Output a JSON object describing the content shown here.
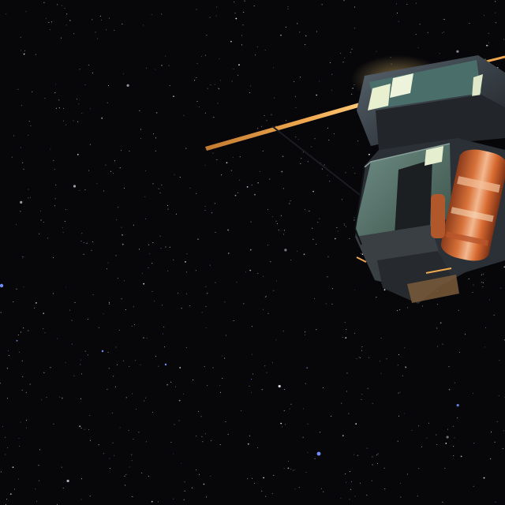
{
  "scene": {
    "description_label": "space-scene",
    "colors": {
      "space": "#07070a",
      "star": "#e8eef5",
      "star_blue": "#6f8fff",
      "hull_dark": "#2a2d33",
      "hull_mid": "#3d444c",
      "hull_teal": "#4e6a63",
      "panel_glow": "#e8f0d0",
      "boom_orange": "#e8a048",
      "foil_orange": "#d8723a",
      "foil_light": "#f0b890"
    },
    "icons": {
      "satellite": "satellite-icon",
      "stars": "star-icon"
    }
  }
}
